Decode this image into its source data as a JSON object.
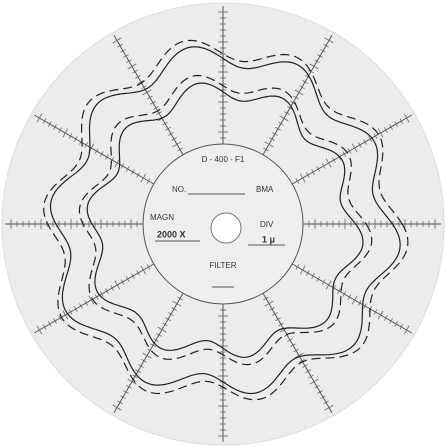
{
  "chart_labels": {
    "code": "D - 400 - F1",
    "number": "NO.",
    "unit": "BMA",
    "magnification_label": "MAGN",
    "magnification": "2000 X",
    "division_label": "DIV",
    "division": "1 μ",
    "filter": "FILTER"
  }
}
